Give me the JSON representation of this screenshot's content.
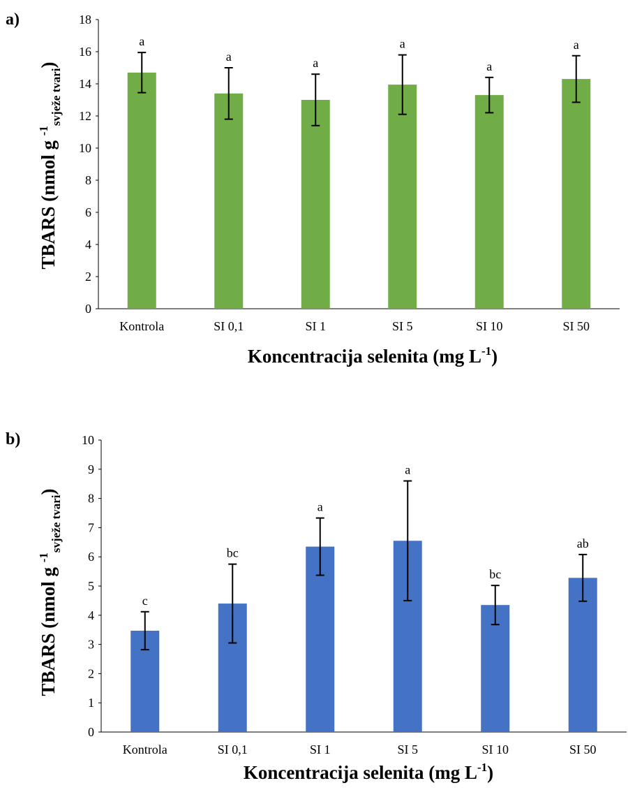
{
  "figure": {
    "panels": [
      "a)",
      "b)"
    ],
    "categories": [
      "Kontrola",
      "SI 0,1",
      "SI 1",
      "SI 5",
      "SI 10",
      "SI 50"
    ],
    "xlabel": {
      "main": "Koncentracija selenita (mg L",
      "sup": "-1",
      "close": ")"
    },
    "ylabel": {
      "main": "TBARS (nmol g ",
      "sup": "-1",
      "sub": "svježe tvari",
      "close": ")"
    }
  },
  "chart_data": [
    {
      "type": "bar",
      "panel": "a)",
      "categories": [
        "Kontrola",
        "SI 0,1",
        "SI 1",
        "SI 5",
        "SI 10",
        "SI 50"
      ],
      "values": [
        14.7,
        13.4,
        13.0,
        13.95,
        13.3,
        14.3
      ],
      "errors": [
        1.25,
        1.6,
        1.6,
        1.85,
        1.1,
        1.45
      ],
      "significance": [
        "a",
        "a",
        "a",
        "a",
        "a",
        "a"
      ],
      "ylim": [
        0,
        18
      ],
      "yticks": [
        0,
        2,
        4,
        6,
        8,
        10,
        12,
        14,
        16,
        18
      ],
      "color": "#70ad47",
      "xlabel": "Koncentracija selenita (mg L-1)",
      "ylabel": "TBARS (nmol g -1 svježe tvari)",
      "grid": false
    },
    {
      "type": "bar",
      "panel": "b)",
      "categories": [
        "Kontrola",
        "SI 0,1",
        "SI 1",
        "SI 5",
        "SI 10",
        "SI 50"
      ],
      "values": [
        3.47,
        4.4,
        6.35,
        6.55,
        4.35,
        5.28
      ],
      "errors": [
        0.65,
        1.35,
        0.98,
        2.05,
        0.67,
        0.8
      ],
      "significance": [
        "c",
        "bc",
        "a",
        "a",
        "bc",
        "ab"
      ],
      "ylim": [
        0,
        10
      ],
      "yticks": [
        0,
        1,
        2,
        3,
        4,
        5,
        6,
        7,
        8,
        9,
        10
      ],
      "color": "#4472c4",
      "xlabel": "Koncentracija selenita (mg L-1)",
      "ylabel": "TBARS (nmol g -1 svježe tvari)",
      "grid": false
    }
  ]
}
